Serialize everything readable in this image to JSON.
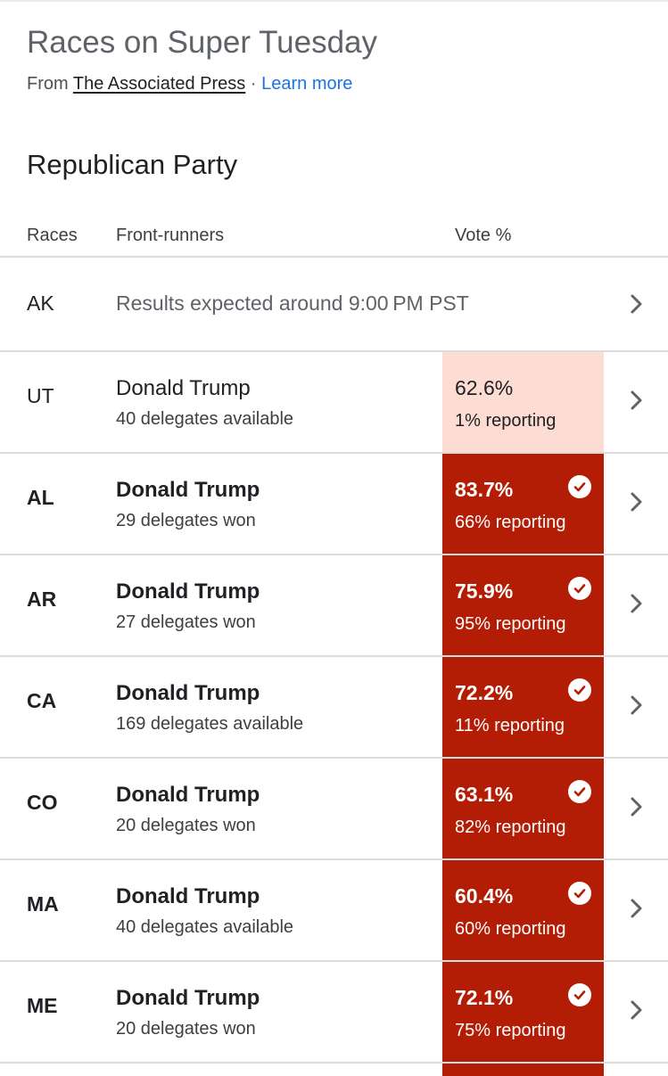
{
  "header": {
    "title": "Races on Super Tuesday",
    "source_prefix": "From",
    "source_name": "The Associated Press",
    "separator": "·",
    "learn_more": "Learn more"
  },
  "party": "Republican Party",
  "columns": {
    "races": "Races",
    "front_runners": "Front-runners",
    "vote": "Vote %"
  },
  "colors": {
    "won": "#b31d05",
    "leading": "#fcdcd3",
    "link": "#1a73e8"
  },
  "icons": {
    "check": "check-circle-icon",
    "chevron": "chevron-right-icon"
  },
  "races": [
    {
      "state": "AK",
      "message": "Results expected around 9:00 PM PST"
    },
    {
      "state": "UT",
      "candidate": "Donald Trump",
      "delegates": "40 delegates available",
      "vote": "62.6%",
      "reporting": "1% reporting",
      "status": "leading"
    },
    {
      "state": "AL",
      "candidate": "Donald Trump",
      "delegates": "29 delegates won",
      "vote": "83.7%",
      "reporting": "66% reporting",
      "status": "won"
    },
    {
      "state": "AR",
      "candidate": "Donald Trump",
      "delegates": "27 delegates won",
      "vote": "75.9%",
      "reporting": "95% reporting",
      "status": "won"
    },
    {
      "state": "CA",
      "candidate": "Donald Trump",
      "delegates": "169 delegates available",
      "vote": "72.2%",
      "reporting": "11% reporting",
      "status": "won"
    },
    {
      "state": "CO",
      "candidate": "Donald Trump",
      "delegates": "20 delegates won",
      "vote": "63.1%",
      "reporting": "82% reporting",
      "status": "won"
    },
    {
      "state": "MA",
      "candidate": "Donald Trump",
      "delegates": "40 delegates available",
      "vote": "60.4%",
      "reporting": "60% reporting",
      "status": "won"
    },
    {
      "state": "ME",
      "candidate": "Donald Trump",
      "delegates": "20 delegates won",
      "vote": "72.1%",
      "reporting": "75% reporting",
      "status": "won"
    }
  ]
}
